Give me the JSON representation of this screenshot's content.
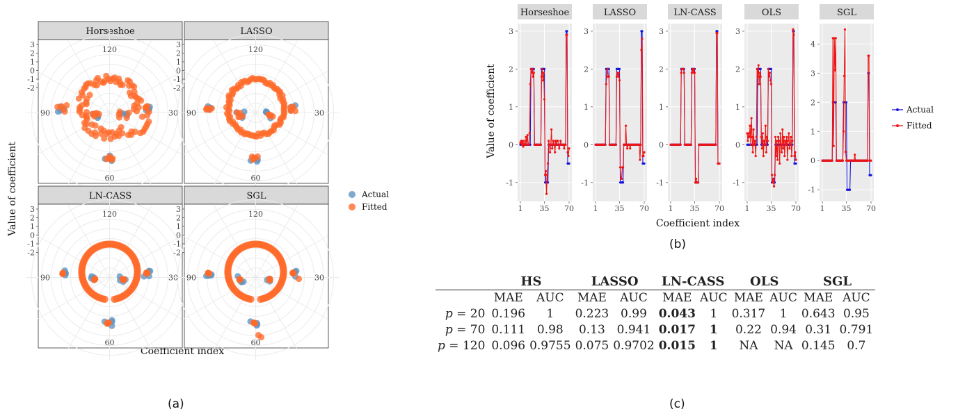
{
  "captions": {
    "a": "(a)",
    "b": "(b)",
    "c": "(c)"
  },
  "chart_data": [
    {
      "type": "scatter",
      "id": "a",
      "coordinate_system": "polar",
      "ylabel": "Value of coefficient",
      "xlabel": "Coefficient index",
      "radial_ticks": [
        "3",
        "2",
        "1",
        "0",
        "-1",
        "-2"
      ],
      "angle_labels": [
        "120",
        "30",
        "60",
        "90"
      ],
      "legend": {
        "position": "right",
        "entries": [
          "Actual",
          "Fitted"
        ]
      },
      "colors": {
        "Actual": "#5f93c2",
        "Fitted": "#ff6a2a"
      },
      "panels": [
        "Horseshoe",
        "LASSO",
        "LN-CASS",
        "SGL"
      ]
    },
    {
      "type": "line",
      "id": "b",
      "ylabel": "Value of coefficient",
      "xlabel": "Coefficient index",
      "xticks": [
        "1",
        "35",
        "70"
      ],
      "legend": {
        "position": "right",
        "entries": [
          "Actual",
          "Fitted"
        ]
      },
      "colors": {
        "Actual": "#1515dd",
        "Fitted": "#ee1515"
      },
      "panels": [
        {
          "name": "Horseshoe",
          "ylim": [
            -1.5,
            3.2
          ],
          "yticks": [
            -1,
            0,
            1,
            2,
            3
          ]
        },
        {
          "name": "LASSO",
          "ylim": [
            -1.5,
            3.2
          ],
          "yticks": [
            -1,
            0,
            1,
            2,
            3
          ]
        },
        {
          "name": "LN-CASS",
          "ylim": [
            -1.5,
            3.2
          ],
          "yticks": [
            -1,
            0,
            1,
            2,
            3
          ]
        },
        {
          "name": "OLS",
          "ylim": [
            -1.5,
            3.2
          ],
          "yticks": [
            -1,
            0,
            1,
            2,
            3
          ]
        },
        {
          "name": "SGL",
          "ylim": [
            -1.4,
            4.7
          ],
          "yticks": [
            -1,
            0,
            1,
            2,
            3,
            4
          ]
        }
      ],
      "x": [
        1,
        2,
        3,
        4,
        5,
        6,
        7,
        8,
        9,
        10,
        11,
        12,
        13,
        14,
        15,
        16,
        17,
        18,
        19,
        20,
        21,
        22,
        23,
        24,
        25,
        26,
        27,
        28,
        29,
        30,
        31,
        32,
        33,
        34,
        35,
        36,
        37,
        38,
        39,
        40,
        41,
        42,
        43,
        44,
        45,
        46,
        47,
        48,
        49,
        50,
        51,
        52,
        53,
        54,
        55,
        56,
        57,
        58,
        59,
        60,
        61,
        62,
        63,
        64,
        65,
        66,
        67,
        68,
        69,
        70
      ],
      "series": [
        {
          "name": "Actual",
          "panel": "all",
          "values": [
            0,
            0,
            0,
            0,
            0,
            0,
            0,
            0,
            0,
            0,
            0,
            0,
            0,
            0,
            0,
            2,
            2,
            2,
            2,
            2,
            0,
            0,
            0,
            0,
            0,
            0,
            0,
            0,
            0,
            0,
            2,
            2,
            2,
            2,
            2,
            -1,
            -1,
            -1,
            -1,
            -1,
            0,
            0,
            0,
            0,
            0,
            0,
            0,
            0,
            0,
            0,
            0,
            0,
            0,
            0,
            0,
            0,
            0,
            0,
            0,
            0,
            0,
            0,
            0,
            0,
            0,
            3,
            3,
            -0.5,
            -0.5,
            -0.5
          ]
        },
        {
          "name": "Fitted",
          "panel": "Horseshoe",
          "values": [
            0.05,
            0.1,
            0,
            0.1,
            -0.05,
            0.1,
            0,
            0,
            0.2,
            0,
            0.25,
            0,
            0,
            0.3,
            1.6,
            2.0,
            1.9,
            2.0,
            1.8,
            1.9,
            0,
            0,
            0,
            0,
            0,
            0,
            0,
            0,
            0,
            0,
            1.8,
            2.0,
            1.7,
            1.9,
            1.2,
            -0.8,
            -0.7,
            -1.3,
            -0.8,
            -0.5,
            0.1,
            0,
            -0.2,
            0,
            0.4,
            -0.1,
            0,
            0.1,
            0,
            -0.2,
            0.1,
            0,
            0.1,
            0.1,
            0,
            -0.1,
            0,
            0.1,
            0,
            0,
            0,
            0,
            -0.1,
            0,
            0,
            2.9,
            2.9,
            -0.2,
            -0.3,
            -0.1
          ]
        },
        {
          "name": "Fitted",
          "panel": "LASSO",
          "values": [
            0,
            0,
            0,
            0,
            0,
            0,
            0,
            0,
            0,
            0,
            0,
            0,
            0,
            0,
            0,
            1.6,
            1.8,
            2.0,
            1.8,
            1.8,
            0,
            0,
            0,
            0,
            0,
            0,
            0,
            0,
            0,
            0,
            1.8,
            1.9,
            1.8,
            1.9,
            1.7,
            -0.6,
            -0.9,
            -0.9,
            -0.6,
            -0.6,
            0,
            0,
            0,
            0.5,
            0,
            -0.1,
            0,
            0,
            0,
            -0.1,
            0,
            0,
            0,
            0,
            0,
            0,
            0,
            0,
            0,
            0,
            0,
            0,
            0,
            -0.4,
            0,
            2.5,
            2.8,
            -0.3,
            -0.3,
            -0.2
          ]
        },
        {
          "name": "Fitted",
          "panel": "LN-CASS",
          "values": [
            0,
            0,
            0,
            0,
            0,
            0,
            0,
            0,
            0,
            0,
            0,
            0,
            0,
            0,
            0,
            1.9,
            2.0,
            2.0,
            2.0,
            1.9,
            0,
            0,
            0,
            0,
            0,
            0,
            0,
            0,
            0,
            0,
            1.9,
            2.0,
            1.9,
            2.0,
            1.9,
            -1.0,
            -0.9,
            -1.0,
            -1.0,
            -1.0,
            0,
            0,
            0,
            0,
            0,
            0,
            0,
            0,
            0,
            0,
            0,
            0,
            0,
            0,
            0,
            0,
            0,
            0,
            0,
            0,
            0,
            0,
            0,
            0,
            0,
            2.95,
            2.95,
            -0.5,
            -0.5,
            -0.5
          ]
        },
        {
          "name": "Fitted",
          "panel": "OLS",
          "values": [
            0.3,
            0.1,
            0.3,
            0.2,
            0.5,
            0,
            0.7,
            0.2,
            -0.2,
            0.4,
            0,
            0.1,
            -0.3,
            0.2,
            2.0,
            1.8,
            2.1,
            1.6,
            1.9,
            1.8,
            0.2,
            -0.1,
            0.3,
            -0.3,
            0.1,
            0,
            0.5,
            -0.2,
            0.2,
            0.1,
            2.0,
            1.8,
            1.9,
            1.7,
            1.6,
            -0.8,
            -1.0,
            -0.9,
            -1.1,
            -0.8,
            0.2,
            -0.3,
            0.1,
            -0.4,
            0.2,
            0.1,
            -0.5,
            0.3,
            0,
            -0.2,
            0.4,
            -0.1,
            0.2,
            -0.3,
            0.1,
            0,
            0.2,
            -0.4,
            0.1,
            0.3,
            -0.1,
            0,
            0.2,
            -0.3,
            0.1,
            3.05,
            2.9,
            -0.3,
            -0.2,
            -0.4
          ]
        },
        {
          "name": "Fitted",
          "panel": "SGL",
          "values": [
            0,
            0,
            0,
            0,
            0,
            0,
            0,
            0,
            0,
            0,
            0,
            0,
            0,
            0,
            0,
            4.2,
            0.5,
            4.2,
            3.1,
            4.2,
            0,
            0,
            0,
            0,
            0,
            0,
            0,
            0,
            0,
            0,
            1.0,
            2.9,
            4.5,
            0.3,
            0,
            0,
            0,
            0,
            0,
            0,
            0,
            0,
            0,
            0,
            0,
            0,
            0.2,
            0,
            0,
            0,
            0,
            0,
            0,
            0,
            0,
            0,
            0,
            0,
            0,
            0,
            0,
            0,
            0,
            0,
            0,
            3.6,
            3.6,
            0,
            0,
            0
          ]
        }
      ]
    }
  ],
  "table": {
    "groups": [
      "HS",
      "LASSO",
      "LN-CASS",
      "OLS",
      "SGL"
    ],
    "subheaders": [
      "MAE",
      "AUC"
    ],
    "rows": [
      {
        "label_var": "p",
        "label_eq": "= ",
        "label_num": "20",
        "cells": [
          "0.196",
          "1",
          "0.223",
          "0.99",
          "0.043",
          "1",
          "0.317",
          "1",
          "0.643",
          "0.95"
        ],
        "bold": [
          4
        ]
      },
      {
        "label_var": "p",
        "label_eq": "= ",
        "label_num": "70",
        "cells": [
          "0.111",
          "0.98",
          "0.13",
          "0.941",
          "0.017",
          "1",
          "0.22",
          "0.94",
          "0.31",
          "0.791"
        ],
        "bold": [
          4,
          5
        ]
      },
      {
        "label_var": "p",
        "label_eq": "= ",
        "label_num": "120",
        "cells": [
          "0.096",
          "0.9755",
          "0.075",
          "0.9702",
          "0.015",
          "1",
          "NA",
          "NA",
          "0.145",
          "0.7"
        ],
        "bold": [
          4,
          5
        ]
      }
    ]
  }
}
